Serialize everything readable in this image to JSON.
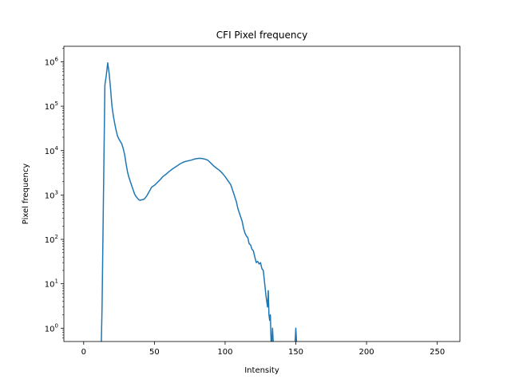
{
  "chart_data": {
    "type": "line",
    "title": "CFI Pixel frequency",
    "xlabel": "Intensity",
    "ylabel": "Pixel frequency",
    "xlim": [
      -14,
      266
    ],
    "ylim_log10": [
      -0.3,
      6.35
    ],
    "yscale": "log",
    "grid": false,
    "legend": "none",
    "x_ticks": [
      0,
      50,
      100,
      150,
      200,
      250
    ],
    "y_ticks": [
      {
        "mantissa": "10",
        "exp": "0",
        "value": 1
      },
      {
        "mantissa": "10",
        "exp": "1",
        "value": 10
      },
      {
        "mantissa": "10",
        "exp": "2",
        "value": 100
      },
      {
        "mantissa": "10",
        "exp": "3",
        "value": 1000
      },
      {
        "mantissa": "10",
        "exp": "4",
        "value": 10000
      },
      {
        "mantissa": "10",
        "exp": "5",
        "value": 100000
      },
      {
        "mantissa": "10",
        "exp": "6",
        "value": 1000000
      }
    ],
    "series": [
      {
        "color": "#1f77b4",
        "points": [
          [
            12.5,
            0.5
          ],
          [
            13,
            3
          ],
          [
            14,
            1000
          ],
          [
            15,
            300000
          ],
          [
            16,
            500000
          ],
          [
            17,
            950000
          ],
          [
            18,
            550000
          ],
          [
            19,
            250000
          ],
          [
            20,
            100000
          ],
          [
            21,
            60000
          ],
          [
            22,
            40000
          ],
          [
            23,
            28000
          ],
          [
            24,
            21000
          ],
          [
            25,
            18000
          ],
          [
            26,
            16000
          ],
          [
            27,
            14000
          ],
          [
            28,
            11000
          ],
          [
            29,
            8000
          ],
          [
            30,
            5000
          ],
          [
            31,
            3300
          ],
          [
            32,
            2500
          ],
          [
            33,
            2000
          ],
          [
            34,
            1600
          ],
          [
            35,
            1300
          ],
          [
            36,
            1050
          ],
          [
            37,
            930
          ],
          [
            38,
            850
          ],
          [
            39,
            780
          ],
          [
            40,
            760
          ],
          [
            41,
            780
          ],
          [
            42,
            790
          ],
          [
            43,
            820
          ],
          [
            44,
            900
          ],
          [
            45,
            1000
          ],
          [
            46,
            1150
          ],
          [
            47,
            1300
          ],
          [
            48,
            1500
          ],
          [
            50,
            1650
          ],
          [
            52,
            1900
          ],
          [
            54,
            2200
          ],
          [
            56,
            2600
          ],
          [
            58,
            2900
          ],
          [
            60,
            3300
          ],
          [
            62,
            3700
          ],
          [
            64,
            4100
          ],
          [
            66,
            4500
          ],
          [
            68,
            5000
          ],
          [
            70,
            5400
          ],
          [
            72,
            5700
          ],
          [
            74,
            5900
          ],
          [
            76,
            6100
          ],
          [
            78,
            6400
          ],
          [
            80,
            6600
          ],
          [
            82,
            6700
          ],
          [
            84,
            6600
          ],
          [
            86,
            6400
          ],
          [
            88,
            6000
          ],
          [
            90,
            5200
          ],
          [
            92,
            4500
          ],
          [
            94,
            4000
          ],
          [
            96,
            3600
          ],
          [
            98,
            3100
          ],
          [
            100,
            2600
          ],
          [
            102,
            2100
          ],
          [
            104,
            1700
          ],
          [
            106,
            1100
          ],
          [
            108,
            700
          ],
          [
            109,
            500
          ],
          [
            110,
            400
          ],
          [
            111,
            320
          ],
          [
            112,
            260
          ],
          [
            113,
            180
          ],
          [
            114,
            140
          ],
          [
            115,
            120
          ],
          [
            116,
            110
          ],
          [
            117,
            80
          ],
          [
            118,
            75
          ],
          [
            119,
            60
          ],
          [
            120,
            55
          ],
          [
            121,
            40
          ],
          [
            122,
            30
          ],
          [
            123,
            32
          ],
          [
            124,
            28
          ],
          [
            125,
            30
          ],
          [
            126,
            22
          ],
          [
            127,
            20
          ],
          [
            128,
            10
          ],
          [
            129,
            5
          ],
          [
            130,
            3
          ],
          [
            130.5,
            7
          ],
          [
            131,
            2
          ],
          [
            131.5,
            1.5
          ],
          [
            132,
            2
          ],
          [
            132.5,
            0.5
          ]
        ]
      },
      {
        "color": "#1f77b4",
        "points": [
          [
            133,
            0.5
          ],
          [
            133.5,
            1
          ],
          [
            134,
            0.5
          ]
        ]
      },
      {
        "color": "#1f77b4",
        "points": [
          [
            149.5,
            0.5
          ],
          [
            150,
            1
          ],
          [
            150.5,
            0.5
          ]
        ]
      }
    ]
  }
}
